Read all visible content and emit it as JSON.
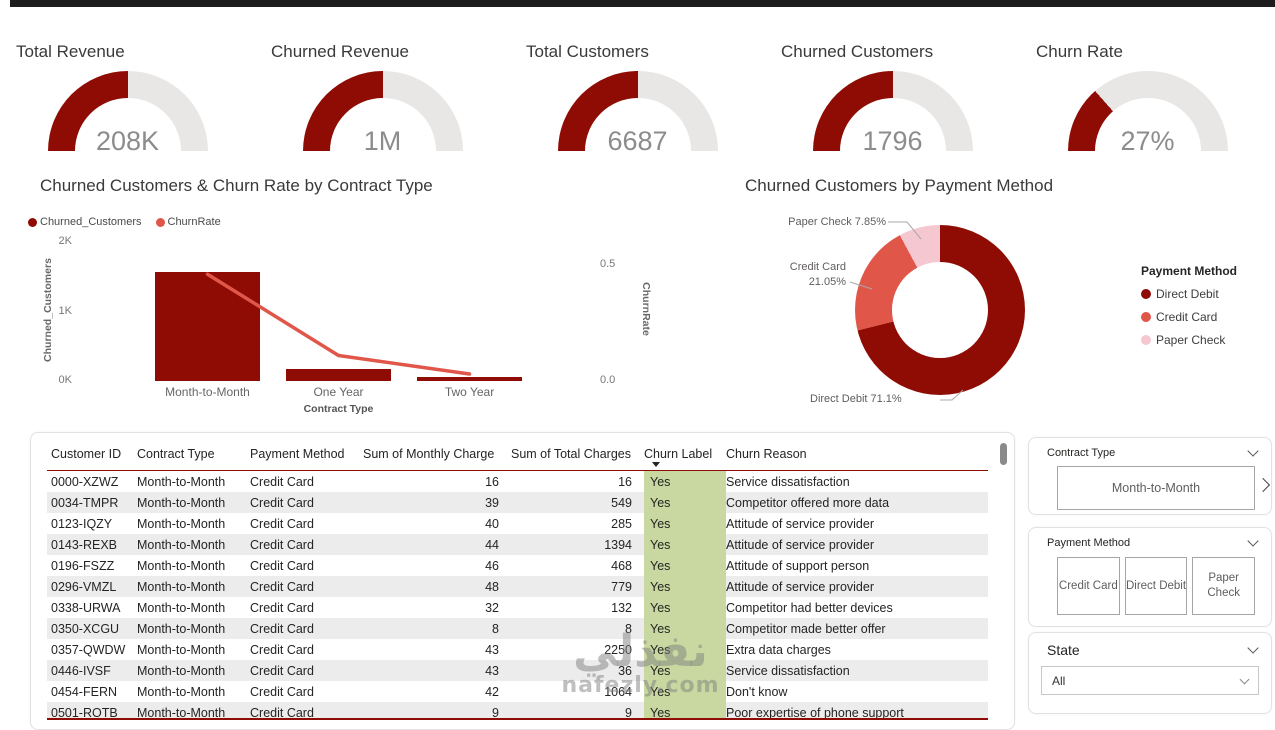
{
  "colors": {
    "dark_red": "#8E0C04",
    "accent_red": "#E0574A",
    "pink": "#F4C7D1",
    "green_cell": "#C8D8A0",
    "row_alt": "#ECECEC",
    "value_gray": "#8C8C8C",
    "border_gray": "#A6A6A6",
    "topbar": "#1D1D1D"
  },
  "chart_data": [
    {
      "type": "gauge",
      "items": [
        {
          "title": "Total Revenue",
          "value": "208K",
          "fill_fraction": 0.5
        },
        {
          "title": "Churned Revenue",
          "value": "1M",
          "fill_fraction": 0.5
        },
        {
          "title": "Total Customers",
          "value": "6687",
          "fill_fraction": 0.5
        },
        {
          "title": "Churned Customers",
          "value": "1796",
          "fill_fraction": 0.5
        },
        {
          "title": "Churn Rate",
          "value": "27%",
          "fill_fraction": 0.27
        }
      ]
    },
    {
      "type": "bar",
      "subtype": "column-line-combo",
      "title": "Churned Customers & Churn Rate by Contract Type",
      "categories": [
        "Month-to-Month",
        "One Year",
        "Two Year"
      ],
      "series": [
        {
          "name": "Churned_Customers",
          "kind": "bar",
          "axis": "left",
          "values": [
            1570,
            170,
            60
          ]
        },
        {
          "name": "ChurnRate",
          "kind": "line",
          "axis": "right",
          "values": [
            0.46,
            0.11,
            0.03
          ]
        }
      ],
      "xlabel": "Contract Type",
      "ylabel_left": "Churned_Customers",
      "ylabel_right": "ChurnRate",
      "ylim_left": [
        0,
        2000
      ],
      "ylim_right": [
        0,
        0.5
      ],
      "yticks_left": [
        "0K",
        "1K",
        "2K"
      ],
      "yticks_right": [
        "0.0",
        "0.5"
      ],
      "legend_position": "top-left",
      "grid": false
    },
    {
      "type": "pie",
      "subtype": "donut",
      "title": "Churned Customers by Payment Method",
      "labels": [
        "Direct Debit",
        "Credit Card",
        "Paper Check"
      ],
      "values_pct": [
        71.1,
        21.05,
        7.85
      ],
      "callouts": {
        "paper": "Paper Check 7.85%",
        "credit_line1": "Credit Card",
        "credit_line2": "21.05%",
        "direct": "Direct Debit 71.1%"
      },
      "legend_title": "Payment Method",
      "legend_position": "right"
    }
  ],
  "table": {
    "columns": [
      "Customer ID",
      "Contract Type",
      "Payment Method",
      "Sum of Monthly Charge",
      "Sum of Total Charges",
      "Churn Label",
      "Churn Reason"
    ],
    "sort_column": "Churn Label",
    "rows": [
      [
        "0000-XZWZ",
        "Month-to-Month",
        "Credit Card",
        "16",
        "16",
        "Yes",
        "Service dissatisfaction"
      ],
      [
        "0034-TMPR",
        "Month-to-Month",
        "Credit Card",
        "39",
        "549",
        "Yes",
        "Competitor offered more data"
      ],
      [
        "0123-IQZY",
        "Month-to-Month",
        "Credit Card",
        "40",
        "285",
        "Yes",
        "Attitude of service provider"
      ],
      [
        "0143-REXB",
        "Month-to-Month",
        "Credit Card",
        "44",
        "1394",
        "Yes",
        "Attitude of service provider"
      ],
      [
        "0196-FSZZ",
        "Month-to-Month",
        "Credit Card",
        "46",
        "468",
        "Yes",
        "Attitude of support person"
      ],
      [
        "0296-VMZL",
        "Month-to-Month",
        "Credit Card",
        "48",
        "779",
        "Yes",
        "Attitude of service provider"
      ],
      [
        "0338-URWA",
        "Month-to-Month",
        "Credit Card",
        "32",
        "132",
        "Yes",
        "Competitor had better devices"
      ],
      [
        "0350-XCGU",
        "Month-to-Month",
        "Credit Card",
        "8",
        "8",
        "Yes",
        "Competitor made better offer"
      ],
      [
        "0357-QWDW",
        "Month-to-Month",
        "Credit Card",
        "43",
        "2250",
        "Yes",
        "Extra data charges"
      ],
      [
        "0446-IVSF",
        "Month-to-Month",
        "Credit Card",
        "43",
        "36",
        "Yes",
        "Service dissatisfaction"
      ],
      [
        "0454-FERN",
        "Month-to-Month",
        "Credit Card",
        "42",
        "1064",
        "Yes",
        "Don't know"
      ],
      [
        "0501-ROTB",
        "Month-to-Month",
        "Credit Card",
        "9",
        "9",
        "Yes",
        "Poor expertise of phone support"
      ]
    ]
  },
  "slicers": {
    "contract_type": {
      "label": "Contract Type",
      "selected": "Month-to-Month"
    },
    "payment_method": {
      "label": "Payment Method",
      "options": [
        "Credit Card",
        "Direct Debit",
        "Paper Check"
      ]
    },
    "state": {
      "label": "State",
      "value": "All"
    }
  },
  "watermark": {
    "text_ar": "نفذلي",
    "text_domain": "nafezly.com"
  }
}
